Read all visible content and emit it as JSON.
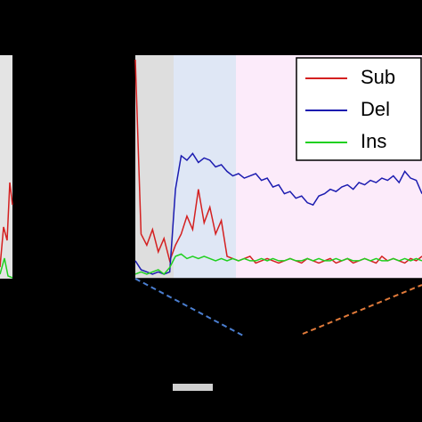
{
  "chart_data": {
    "type": "line",
    "x": [
      0,
      2,
      4,
      6,
      8,
      10,
      12,
      14,
      16,
      18,
      20,
      22,
      24,
      26,
      28,
      30,
      32,
      34,
      36,
      38,
      40,
      42,
      44,
      46,
      48,
      50,
      52,
      54,
      56,
      58,
      60,
      62,
      64,
      66,
      68,
      70,
      72,
      74,
      76,
      78,
      80,
      82,
      84,
      86,
      88,
      90,
      92,
      94,
      96,
      98,
      100
    ],
    "xlim": [
      0,
      100
    ],
    "ylim": [
      0,
      100
    ],
    "series": [
      {
        "name": "Sub",
        "color": "#d42020",
        "values": [
          98,
          20,
          15,
          22,
          12,
          18,
          8,
          15,
          20,
          28,
          22,
          40,
          25,
          32,
          20,
          26,
          10,
          9,
          8,
          9,
          10,
          7,
          8,
          9,
          8,
          7,
          8,
          9,
          8,
          7,
          9,
          8,
          7,
          8,
          9,
          7,
          8,
          9,
          7,
          8,
          9,
          8,
          7,
          10,
          8,
          9,
          8,
          7,
          9,
          8,
          10
        ]
      },
      {
        "name": "Del",
        "color": "#1c1cb0",
        "values": [
          8,
          4,
          3,
          2,
          3,
          2,
          3,
          40,
          55,
          53,
          56,
          52,
          54,
          53,
          50,
          51,
          48,
          46,
          47,
          45,
          46,
          47,
          44,
          45,
          41,
          42,
          38,
          39,
          36,
          37,
          34,
          33,
          37,
          38,
          40,
          39,
          41,
          42,
          40,
          43,
          42,
          44,
          43,
          45,
          44,
          46,
          43,
          48,
          45,
          44,
          38
        ]
      },
      {
        "name": "Ins",
        "color": "#20d020",
        "values": [
          2,
          3,
          2,
          3,
          4,
          2,
          5,
          10,
          11,
          9,
          10,
          9,
          10,
          9,
          8,
          9,
          8,
          9,
          8,
          9,
          8,
          8,
          9,
          8,
          9,
          8,
          8,
          9,
          8,
          8,
          9,
          8,
          9,
          8,
          8,
          9,
          8,
          9,
          8,
          8,
          9,
          8,
          9,
          8,
          8,
          9,
          8,
          9,
          8,
          9,
          8
        ]
      }
    ]
  }
}
